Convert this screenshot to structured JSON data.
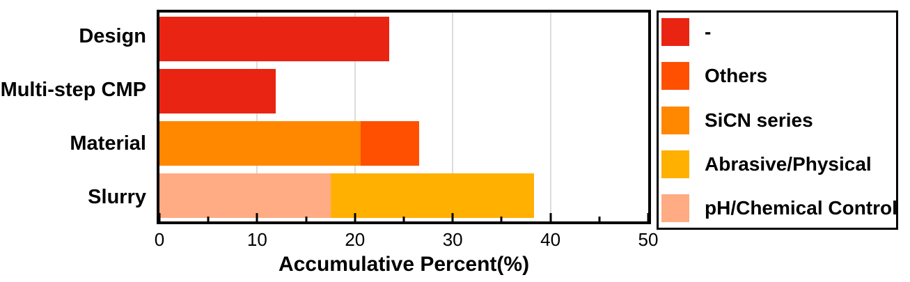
{
  "chart_data": {
    "type": "bar",
    "orientation": "horizontal",
    "title": "",
    "xlabel": "Accumulative Percent(%)",
    "ylabel": "",
    "xlim": [
      0,
      50
    ],
    "x_ticks": [
      0,
      10,
      20,
      30,
      40,
      50
    ],
    "x_minor_ticks": [
      5,
      15,
      25,
      35,
      45
    ],
    "gridlines": [
      10,
      20,
      30,
      40
    ],
    "grid": true,
    "legend_position": "right",
    "frame_color": "#000000",
    "gridline_color": "#dcdcdc",
    "categories": [
      "Design",
      "Multi-step CMP",
      "Material",
      "Slurry"
    ],
    "legend": [
      {
        "name": "-",
        "color": "#ea2412"
      },
      {
        "name": "Others",
        "color": "#fe5000"
      },
      {
        "name": "SiCN series",
        "color": "#ff8800"
      },
      {
        "name": "Abrasive/Physical",
        "color": "#ffb000"
      },
      {
        "name": "pH/Chemical Control",
        "color": "#ffab84"
      }
    ],
    "bars": [
      {
        "category": "Design",
        "total": 23.5,
        "segments": [
          {
            "legend": "-",
            "value": 23.5
          }
        ]
      },
      {
        "category": "Multi-step CMP",
        "total": 11.9,
        "segments": [
          {
            "legend": "-",
            "value": 11.9
          }
        ]
      },
      {
        "category": "Material",
        "total": 26.6,
        "segments": [
          {
            "legend": "SiCN series",
            "value": 20.6
          },
          {
            "legend": "Others",
            "value": 6.0
          }
        ]
      },
      {
        "category": "Slurry",
        "total": 38.3,
        "segments": [
          {
            "legend": "pH/Chemical Control",
            "value": 17.5
          },
          {
            "legend": "Abrasive/Physical",
            "value": 20.8
          }
        ]
      }
    ]
  }
}
